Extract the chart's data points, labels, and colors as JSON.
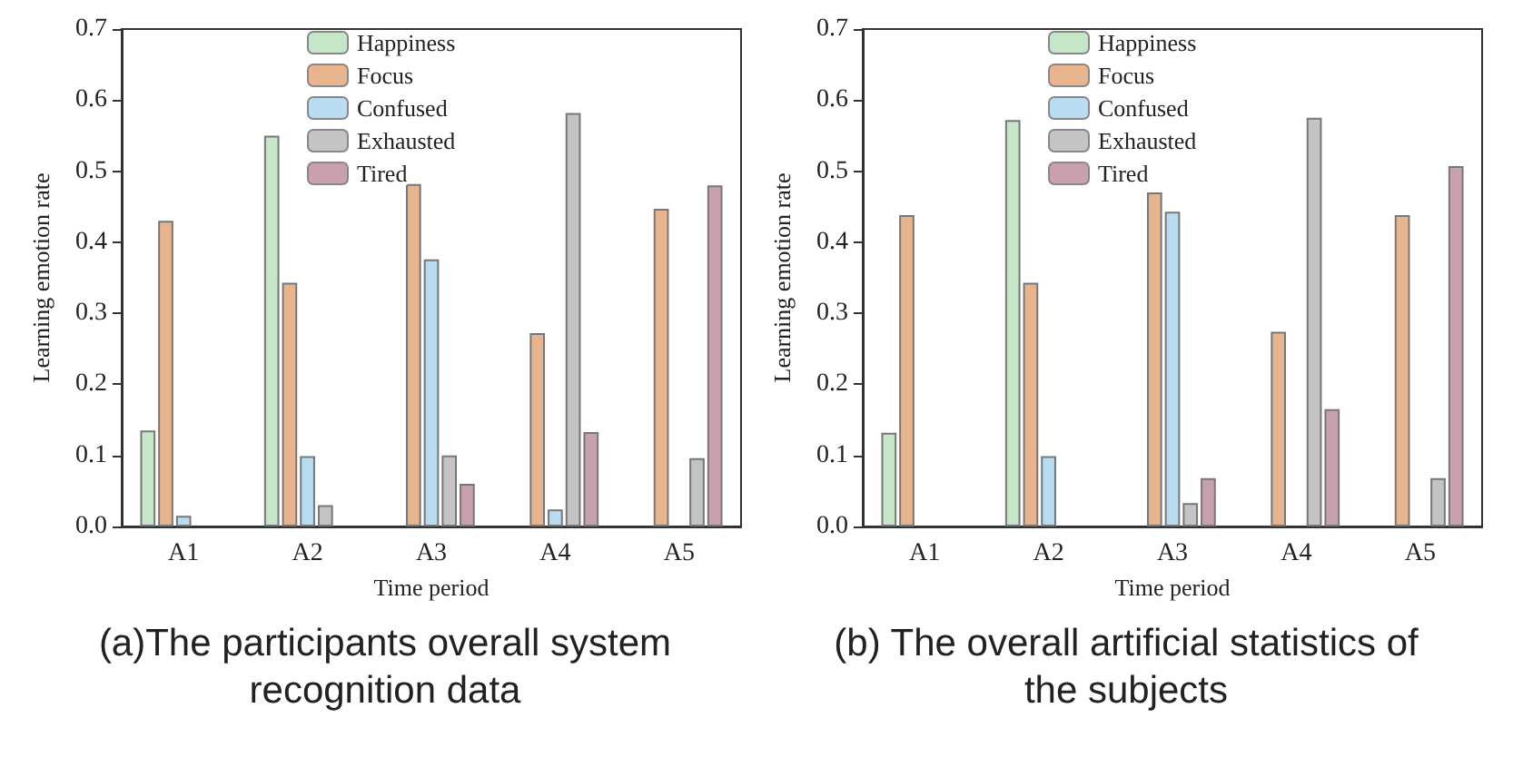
{
  "chart_data": [
    {
      "type": "bar",
      "xlabel": "Time period",
      "ylabel": "Learning emotion rate",
      "categories": [
        "A1",
        "A2",
        "A3",
        "A4",
        "A5"
      ],
      "series": [
        {
          "name": "Happiness",
          "color": "#c6e6c8",
          "values": [
            0.135,
            0.55,
            null,
            null,
            null
          ]
        },
        {
          "name": "Focus",
          "color": "#e8b48e",
          "values": [
            0.43,
            0.343,
            0.482,
            0.272,
            0.447
          ]
        },
        {
          "name": "Confused",
          "color": "#b8ddf2",
          "values": [
            0.015,
            0.099,
            0.376,
            0.024,
            null
          ]
        },
        {
          "name": "Exhausted",
          "color": "#c4c4c4",
          "values": [
            null,
            0.03,
            0.1,
            0.582,
            0.096
          ]
        },
        {
          "name": "Tired",
          "color": "#c9a0ae",
          "values": [
            null,
            null,
            0.06,
            0.133,
            0.48
          ]
        }
      ],
      "ylim": [
        0,
        0.7
      ],
      "yticks": [
        {
          "value": 0,
          "label": "0.0"
        },
        0.1,
        0.2,
        0.3,
        0.4,
        0.5,
        0.6,
        0.7
      ],
      "grid": false,
      "legend": "top",
      "annotations": [
        "(a)The participants overall system recognition data"
      ]
    },
    {
      "type": "bar",
      "xlabel": "Time period",
      "ylabel": "Learning emotion rate",
      "categories": [
        "A1",
        "A2",
        "A3",
        "A4",
        "A5"
      ],
      "series": [
        {
          "name": "Happiness",
          "color": "#c6e6c8",
          "values": [
            0.132,
            0.572,
            null,
            null,
            null
          ]
        },
        {
          "name": "Focus",
          "color": "#e8b48e",
          "values": [
            0.438,
            0.343,
            0.47,
            0.274,
            0.438
          ]
        },
        {
          "name": "Confused",
          "color": "#b8ddf2",
          "values": [
            null,
            0.099,
            0.443,
            null,
            null
          ]
        },
        {
          "name": "Exhausted",
          "color": "#c4c4c4",
          "values": [
            null,
            null,
            0.033,
            0.575,
            0.068
          ]
        },
        {
          "name": "Tired",
          "color": "#c9a0ae",
          "values": [
            null,
            null,
            0.068,
            0.165,
            0.507
          ]
        }
      ],
      "ylim": [
        0,
        0.7
      ],
      "yticks": [
        {
          "value": 0,
          "label": "0.0"
        },
        0.1,
        0.2,
        0.3,
        0.4,
        0.5,
        0.6,
        0.7
      ],
      "grid": false,
      "legend": "top",
      "annotations": [
        "(b) The overall artificial statistics of the subjects"
      ]
    }
  ]
}
